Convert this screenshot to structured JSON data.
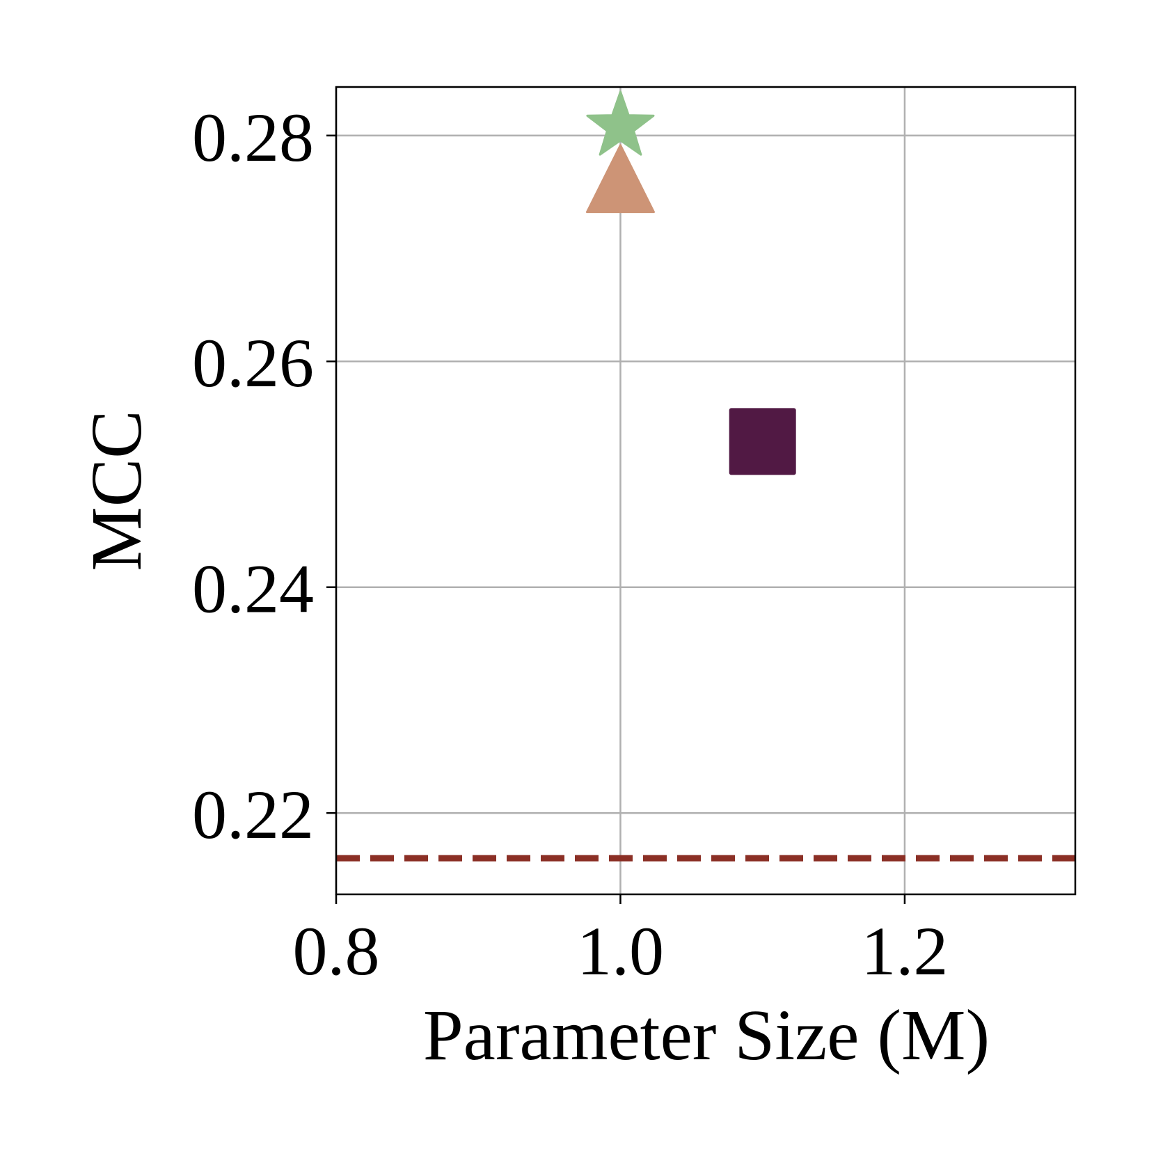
{
  "chart_data": {
    "type": "scatter",
    "title": "",
    "xlabel": "Parameter Size (M)",
    "ylabel": "MCC",
    "xlim": [
      0.8,
      1.32
    ],
    "ylim": [
      0.2128,
      0.2843
    ],
    "x_ticks": [
      0.8,
      1.0,
      1.2
    ],
    "x_tick_labels": [
      "0.8",
      "1.0",
      "1.2"
    ],
    "y_ticks": [
      0.22,
      0.24,
      0.26,
      0.28
    ],
    "y_tick_labels": [
      "0.22",
      "0.24",
      "0.26",
      "0.28"
    ],
    "grid": true,
    "points": [
      {
        "x": 1.0,
        "y": 0.2808,
        "marker": "star",
        "color": "#8fc28a"
      },
      {
        "x": 1.0,
        "y": 0.2752,
        "marker": "triangle",
        "color": "#cd9476"
      },
      {
        "x": 1.1,
        "y": 0.2529,
        "marker": "square",
        "color": "#511944"
      }
    ],
    "reference_lines": [
      {
        "orientation": "horizontal",
        "y": 0.216,
        "style": "dashed",
        "color": "#8b2f25"
      }
    ]
  }
}
